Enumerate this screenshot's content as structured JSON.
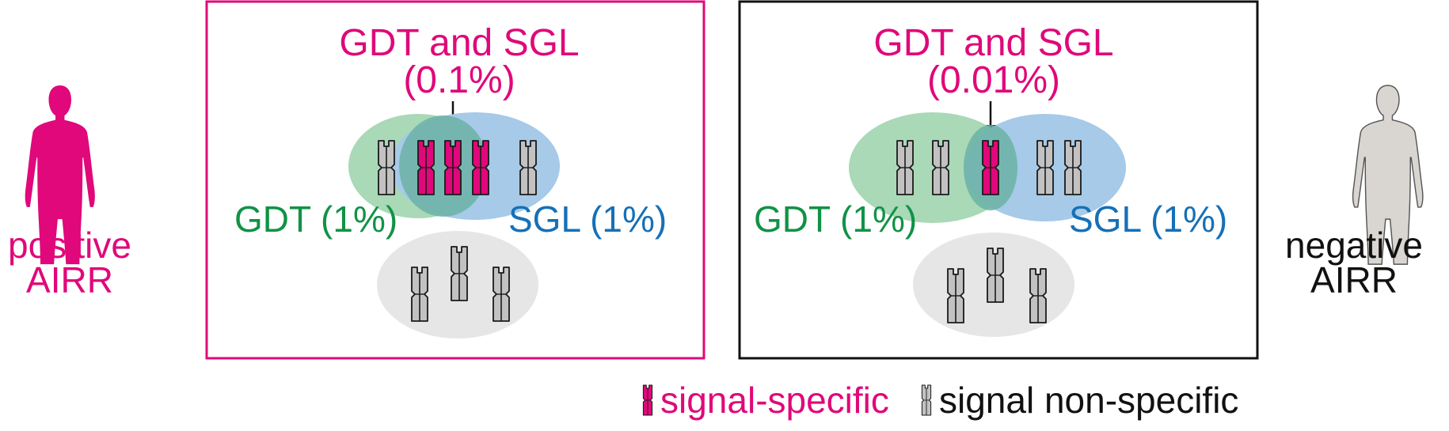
{
  "colors": {
    "pink": "#e0087a",
    "green": "#119246",
    "blue": "#1570b8",
    "ellipse_green": "#a9d9b7",
    "ellipse_blue": "#a6cae8",
    "ellipse_overlap": "#6bb3a4",
    "ellipse_gray": "#e6e6e6",
    "chromosome_gray": "#c2c2c2",
    "outline": "#1a1a1a",
    "human_positive": "#e0087a",
    "human_negative": "#d9d6d1"
  },
  "positive": {
    "label_line1": "positive",
    "label_line2": "AIRR",
    "icon": "human-figure-icon",
    "panel": {
      "overlap_title": "GDT and SGL",
      "overlap_pct": "(0.1%)",
      "gdt_label": "GDT (1%)",
      "sgl_label": "SGL (1%)",
      "specific_count": 3,
      "gdt_only_count": 1,
      "sgl_only_count": 1,
      "background_count": 3
    }
  },
  "negative": {
    "label_line1": "negative",
    "label_line2": "AIRR",
    "icon": "human-figure-icon",
    "panel": {
      "overlap_title": "GDT and SGL",
      "overlap_pct": "(0.01%)",
      "gdt_label": "GDT (1%)",
      "sgl_label": "SGL (1%)",
      "specific_count": 1,
      "gdt_only_count": 2,
      "sgl_only_count": 2,
      "background_count": 3
    }
  },
  "legend": {
    "specific": "signal-specific",
    "nonspecific": "signal non-specific",
    "specific_icon": "chromosome-icon",
    "nonspecific_icon": "chromosome-icon"
  }
}
